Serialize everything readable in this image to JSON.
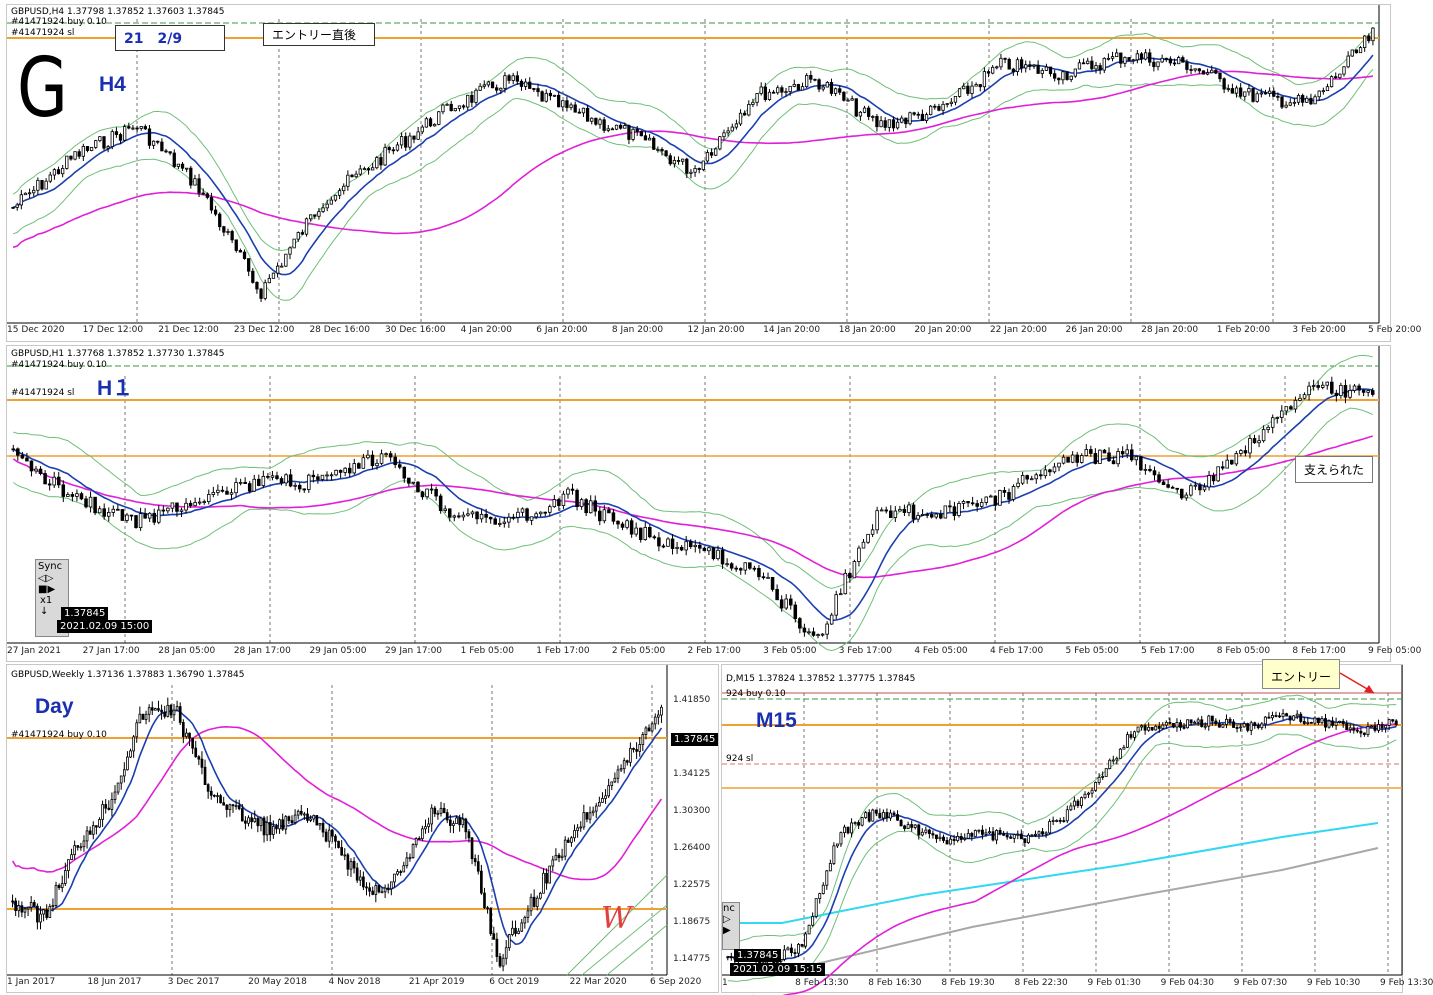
{
  "colors": {
    "bollinger": "#6fbf7a",
    "ma_fast": "#1a3fb0",
    "ma_slow": "#e020d8",
    "orange": "#f0a030",
    "grid": "#555555",
    "cyan": "#30d8f0",
    "gray_ma": "#a8a8a8",
    "label_blue": "#1a2fb0"
  },
  "h4": {
    "header": "GBPUSD,H4  1.37798 1.37852 1.37603 1.37845",
    "order_buy": "#41471924 buy 0.10",
    "order_sl": "#41471924 sl",
    "date_box": "21　2/9",
    "note_box": "エントリー直後",
    "big_letter": "G",
    "tf_label": "H4",
    "x_labels": [
      "15 Dec 2020",
      "17 Dec 12:00",
      "21 Dec 12:00",
      "23 Dec 12:00",
      "28 Dec 16:00",
      "30 Dec 16:00",
      "4 Jan 20:00",
      "6 Jan 20:00",
      "8 Jan 20:00",
      "12 Jan 20:00",
      "14 Jan 20:00",
      "18 Jan 20:00",
      "20 Jan 20:00",
      "22 Jan 20:00",
      "26 Jan 20:00",
      "28 Jan 20:00",
      "1 Feb 20:00",
      "3 Feb 20:00",
      "5 Feb 20:00"
    ]
  },
  "h1": {
    "header": "GBPUSD,H1  1.37768 1.37852 1.37730 1.37845",
    "order_buy": "#41471924 buy 0.10",
    "order_sl": "#41471924 sl",
    "tf_label": "H１",
    "callout": "支えられた",
    "sync_label": "Sync",
    "zoom_label": "x1",
    "price_tag": "1.37845",
    "time_tag": "2021.02.09 15:00",
    "x_labels": [
      "27 Jan 2021",
      "27 Jan 17:00",
      "28 Jan 05:00",
      "28 Jan 17:00",
      "29 Jan 05:00",
      "29 Jan 17:00",
      "1 Feb 05:00",
      "1 Feb 17:00",
      "2 Feb 05:00",
      "2 Feb 17:00",
      "3 Feb 05:00",
      "3 Feb 17:00",
      "4 Feb 05:00",
      "4 Feb 17:00",
      "5 Feb 05:00",
      "5 Feb 17:00",
      "8 Feb 05:00",
      "8 Feb 17:00",
      "9 Feb 05:00"
    ]
  },
  "weekly": {
    "header": "GBPUSD,Weekly  1.37136 1.37883 1.36790 1.37845",
    "order_buy": "#41471924 buy 0.10",
    "tf_label": "Day",
    "price_tag": "1.37845",
    "y_labels": [
      "1.41850",
      "1.37845",
      "1.34125",
      "1.30300",
      "1.26400",
      "1.22575",
      "1.18675",
      "1.14775"
    ],
    "x_labels": [
      "1 Jan 2017",
      "18 Jun 2017",
      "3 Dec 2017",
      "20 May 2018",
      "4 Nov 2018",
      "21 Apr 2019",
      "6 Oct 2019",
      "22 Mar 2020",
      "6 Sep 2020"
    ],
    "mark_text": "W"
  },
  "m15": {
    "header": "D,M15  1.37824 1.37852 1.37775 1.37845",
    "order_buy": "924 buy 0.10",
    "order_sl": "924 sl",
    "tf_label": "M15",
    "entry_label": "エントリー",
    "side_label": "nc",
    "price_tag": "1.37845",
    "time_tag": "2021.02.09 15:15",
    "x_labels": [
      "1",
      "8 Feb 13:30",
      "8 Feb 16:30",
      "8 Feb 19:30",
      "8 Feb 22:30",
      "9 Feb 01:30",
      "9 Feb 04:30",
      "9 Feb 07:30",
      "9 Feb 10:30",
      "9 Feb 13:30"
    ]
  }
}
